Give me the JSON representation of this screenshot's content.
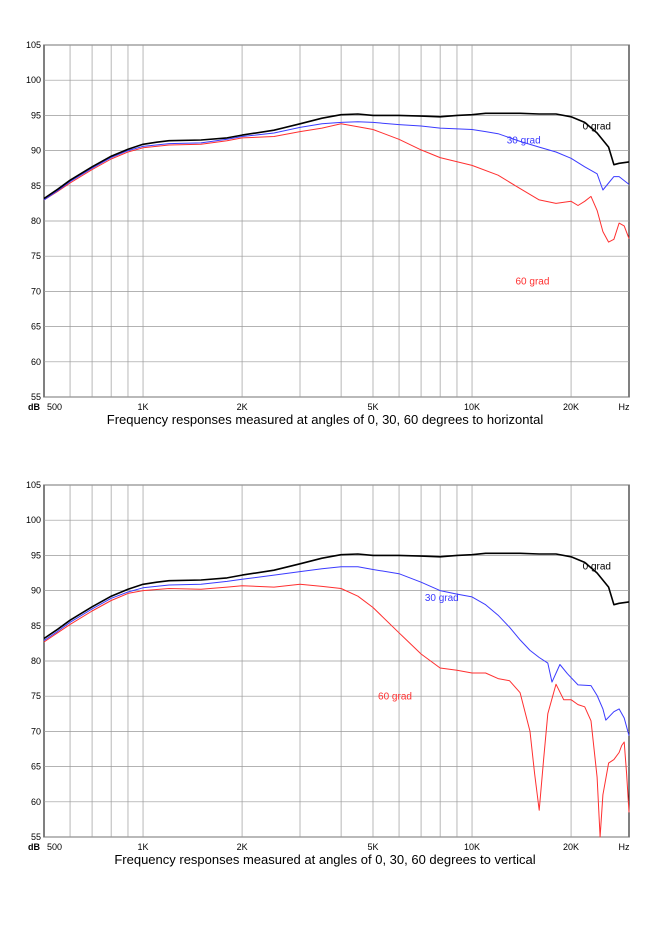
{
  "chart_data": [
    {
      "type": "line",
      "title": "",
      "caption": "Frequency responses measured at angles of 0, 30, 60 degrees to horizontal",
      "xlabel": "Hz",
      "ylabel": "dB",
      "xscale": "log",
      "xlim": [
        500,
        30000
      ],
      "ylim": [
        55,
        105
      ],
      "grid": true,
      "x_tick_labels": [
        {
          "value": 500,
          "label": "500"
        },
        {
          "value": 1000,
          "label": "1K"
        },
        {
          "value": 2000,
          "label": "2K"
        },
        {
          "value": 5000,
          "label": "5K"
        },
        {
          "value": 10000,
          "label": "10K"
        },
        {
          "value": 20000,
          "label": "20K"
        }
      ],
      "y_ticks": [
        55,
        60,
        65,
        70,
        75,
        80,
        85,
        90,
        95,
        100,
        105
      ],
      "series": [
        {
          "name": "0 grad",
          "color": "#000000",
          "points": [
            [
              500,
              83.2
            ],
            [
              550,
              84.5
            ],
            [
              600,
              85.8
            ],
            [
              700,
              87.7
            ],
            [
              800,
              89.2
            ],
            [
              900,
              90.2
            ],
            [
              1000,
              90.9
            ],
            [
              1100,
              91.2
            ],
            [
              1200,
              91.4
            ],
            [
              1500,
              91.5
            ],
            [
              1800,
              91.8
            ],
            [
              2000,
              92.2
            ],
            [
              2500,
              92.9
            ],
            [
              3000,
              93.8
            ],
            [
              3500,
              94.6
            ],
            [
              4000,
              95.1
            ],
            [
              4500,
              95.2
            ],
            [
              5000,
              95.0
            ],
            [
              6000,
              95.0
            ],
            [
              7000,
              94.9
            ],
            [
              8000,
              94.8
            ],
            [
              9000,
              95.0
            ],
            [
              10000,
              95.1
            ],
            [
              11000,
              95.3
            ],
            [
              12000,
              95.3
            ],
            [
              14000,
              95.3
            ],
            [
              16000,
              95.2
            ],
            [
              18000,
              95.2
            ],
            [
              20000,
              94.8
            ],
            [
              22000,
              94.0
            ],
            [
              24000,
              92.5
            ],
            [
              26000,
              90.5
            ],
            [
              27000,
              88.0
            ],
            [
              28000,
              88.2
            ],
            [
              30000,
              88.4
            ]
          ]
        },
        {
          "name": "30 grad",
          "color": "#3b3bff",
          "points": [
            [
              500,
              83.0
            ],
            [
              550,
              84.3
            ],
            [
              600,
              85.6
            ],
            [
              700,
              87.5
            ],
            [
              800,
              89.0
            ],
            [
              900,
              90.0
            ],
            [
              1000,
              90.6
            ],
            [
              1200,
              91.0
            ],
            [
              1500,
              91.1
            ],
            [
              1800,
              91.6
            ],
            [
              2000,
              92.0
            ],
            [
              2500,
              92.5
            ],
            [
              3000,
              93.3
            ],
            [
              3500,
              93.8
            ],
            [
              4000,
              94.0
            ],
            [
              4500,
              94.1
            ],
            [
              5000,
              94.0
            ],
            [
              6000,
              93.7
            ],
            [
              7000,
              93.5
            ],
            [
              8000,
              93.2
            ],
            [
              10000,
              93.0
            ],
            [
              11000,
              92.7
            ],
            [
              12000,
              92.4
            ],
            [
              14000,
              91.3
            ],
            [
              16000,
              90.5
            ],
            [
              18000,
              89.8
            ],
            [
              20000,
              88.9
            ],
            [
              22000,
              87.7
            ],
            [
              24000,
              86.7
            ],
            [
              25000,
              84.4
            ],
            [
              26000,
              85.4
            ],
            [
              27000,
              86.3
            ],
            [
              28000,
              86.3
            ],
            [
              30000,
              85.2
            ]
          ]
        },
        {
          "name": "60 grad",
          "color": "#ff3030",
          "points": [
            [
              500,
              83.0
            ],
            [
              550,
              84.2
            ],
            [
              600,
              85.4
            ],
            [
              700,
              87.3
            ],
            [
              800,
              88.8
            ],
            [
              900,
              89.8
            ],
            [
              1000,
              90.4
            ],
            [
              1200,
              90.8
            ],
            [
              1500,
              90.9
            ],
            [
              1800,
              91.4
            ],
            [
              2000,
              91.8
            ],
            [
              2500,
              92.0
            ],
            [
              3000,
              92.7
            ],
            [
              3500,
              93.2
            ],
            [
              4000,
              93.8
            ],
            [
              4500,
              93.4
            ],
            [
              5000,
              93.0
            ],
            [
              6000,
              91.6
            ],
            [
              7000,
              90.1
            ],
            [
              8000,
              89.0
            ],
            [
              10000,
              87.9
            ],
            [
              12000,
              86.5
            ],
            [
              14000,
              84.6
            ],
            [
              16000,
              83.0
            ],
            [
              18000,
              82.5
            ],
            [
              20000,
              82.8
            ],
            [
              21000,
              82.2
            ],
            [
              22000,
              82.8
            ],
            [
              23000,
              83.5
            ],
            [
              24000,
              81.5
            ],
            [
              25000,
              78.5
            ],
            [
              26000,
              77.0
            ],
            [
              27000,
              77.4
            ],
            [
              28000,
              79.7
            ],
            [
              29000,
              79.3
            ],
            [
              30000,
              77.5
            ]
          ]
        }
      ],
      "annotations": [
        {
          "text": "0 grad",
          "series": "0 grad"
        },
        {
          "text": "30 grad",
          "series": "30 grad"
        },
        {
          "text": "60 grad",
          "series": "60 grad"
        }
      ]
    },
    {
      "type": "line",
      "title": "",
      "caption": "Frequency responses measured at angles of 0, 30, 60 degrees to vertical",
      "xlabel": "Hz",
      "ylabel": "dB",
      "xscale": "log",
      "xlim": [
        500,
        30000
      ],
      "ylim": [
        55,
        105
      ],
      "grid": true,
      "x_tick_labels": [
        {
          "value": 500,
          "label": "500"
        },
        {
          "value": 1000,
          "label": "1K"
        },
        {
          "value": 2000,
          "label": "2K"
        },
        {
          "value": 5000,
          "label": "5K"
        },
        {
          "value": 10000,
          "label": "10K"
        },
        {
          "value": 20000,
          "label": "20K"
        }
      ],
      "y_ticks": [
        55,
        60,
        65,
        70,
        75,
        80,
        85,
        90,
        95,
        100,
        105
      ],
      "series": [
        {
          "name": "0 grad",
          "color": "#000000",
          "points": [
            [
              500,
              83.2
            ],
            [
              550,
              84.5
            ],
            [
              600,
              85.8
            ],
            [
              700,
              87.7
            ],
            [
              800,
              89.2
            ],
            [
              900,
              90.2
            ],
            [
              1000,
              90.9
            ],
            [
              1100,
              91.2
            ],
            [
              1200,
              91.4
            ],
            [
              1500,
              91.5
            ],
            [
              1800,
              91.8
            ],
            [
              2000,
              92.2
            ],
            [
              2500,
              92.9
            ],
            [
              3000,
              93.8
            ],
            [
              3500,
              94.6
            ],
            [
              4000,
              95.1
            ],
            [
              4500,
              95.2
            ],
            [
              5000,
              95.0
            ],
            [
              6000,
              95.0
            ],
            [
              7000,
              94.9
            ],
            [
              8000,
              94.8
            ],
            [
              9000,
              95.0
            ],
            [
              10000,
              95.1
            ],
            [
              11000,
              95.3
            ],
            [
              12000,
              95.3
            ],
            [
              14000,
              95.3
            ],
            [
              16000,
              95.2
            ],
            [
              18000,
              95.2
            ],
            [
              20000,
              94.8
            ],
            [
              22000,
              94.0
            ],
            [
              24000,
              92.5
            ],
            [
              26000,
              90.5
            ],
            [
              27000,
              88.0
            ],
            [
              28000,
              88.2
            ],
            [
              30000,
              88.4
            ]
          ]
        },
        {
          "name": "30 grad",
          "color": "#3b3bff",
          "points": [
            [
              500,
              82.9
            ],
            [
              550,
              84.2
            ],
            [
              600,
              85.5
            ],
            [
              700,
              87.4
            ],
            [
              800,
              88.9
            ],
            [
              900,
              89.8
            ],
            [
              1000,
              90.4
            ],
            [
              1200,
              90.8
            ],
            [
              1500,
              90.9
            ],
            [
              1800,
              91.3
            ],
            [
              2000,
              91.6
            ],
            [
              2500,
              92.2
            ],
            [
              3000,
              92.7
            ],
            [
              3500,
              93.1
            ],
            [
              4000,
              93.4
            ],
            [
              4500,
              93.4
            ],
            [
              5000,
              93.0
            ],
            [
              6000,
              92.4
            ],
            [
              7000,
              91.2
            ],
            [
              8000,
              90.0
            ],
            [
              9000,
              89.5
            ],
            [
              10000,
              89.1
            ],
            [
              11000,
              88.0
            ],
            [
              12000,
              86.5
            ],
            [
              13000,
              84.8
            ],
            [
              14000,
              83.0
            ],
            [
              15000,
              81.5
            ],
            [
              16000,
              80.5
            ],
            [
              17000,
              79.7
            ],
            [
              17500,
              77.0
            ],
            [
              18500,
              79.5
            ],
            [
              19500,
              78.2
            ],
            [
              21000,
              76.6
            ],
            [
              23000,
              76.5
            ],
            [
              24000,
              75.1
            ],
            [
              25000,
              73.2
            ],
            [
              25500,
              71.6
            ],
            [
              27000,
              72.8
            ],
            [
              28000,
              73.2
            ],
            [
              29000,
              71.9
            ],
            [
              30000,
              69.4
            ]
          ]
        },
        {
          "name": "60 grad",
          "color": "#ff3030",
          "points": [
            [
              500,
              82.7
            ],
            [
              550,
              84.0
            ],
            [
              600,
              85.2
            ],
            [
              700,
              87.1
            ],
            [
              800,
              88.6
            ],
            [
              900,
              89.6
            ],
            [
              1000,
              90.0
            ],
            [
              1200,
              90.3
            ],
            [
              1500,
              90.2
            ],
            [
              1800,
              90.5
            ],
            [
              2000,
              90.7
            ],
            [
              2500,
              90.5
            ],
            [
              3000,
              90.9
            ],
            [
              3500,
              90.6
            ],
            [
              4000,
              90.3
            ],
            [
              4500,
              89.2
            ],
            [
              5000,
              87.6
            ],
            [
              6000,
              84.0
            ],
            [
              7000,
              81.0
            ],
            [
              8000,
              79.0
            ],
            [
              9000,
              78.7
            ],
            [
              10000,
              78.3
            ],
            [
              11000,
              78.3
            ],
            [
              12000,
              77.5
            ],
            [
              13000,
              77.2
            ],
            [
              14000,
              75.5
            ],
            [
              15000,
              70.0
            ],
            [
              15500,
              64.0
            ],
            [
              16000,
              58.8
            ],
            [
              16500,
              66.0
            ],
            [
              17000,
              72.5
            ],
            [
              18000,
              76.7
            ],
            [
              19000,
              74.5
            ],
            [
              20000,
              74.5
            ],
            [
              21000,
              73.8
            ],
            [
              22000,
              73.5
            ],
            [
              23000,
              71.5
            ],
            [
              24000,
              63.5
            ],
            [
              24500,
              55.0
            ],
            [
              25000,
              61.0
            ],
            [
              26000,
              65.5
            ],
            [
              27000,
              66.0
            ],
            [
              28000,
              67.0
            ],
            [
              28500,
              68.0
            ],
            [
              29000,
              68.5
            ],
            [
              29500,
              64.0
            ],
            [
              30000,
              58.5
            ]
          ]
        }
      ],
      "annotations": [
        {
          "text": "0 grad",
          "series": "0 grad"
        },
        {
          "text": "30 grad",
          "series": "30 grad"
        },
        {
          "text": "60 grad",
          "series": "60 grad"
        }
      ]
    }
  ]
}
